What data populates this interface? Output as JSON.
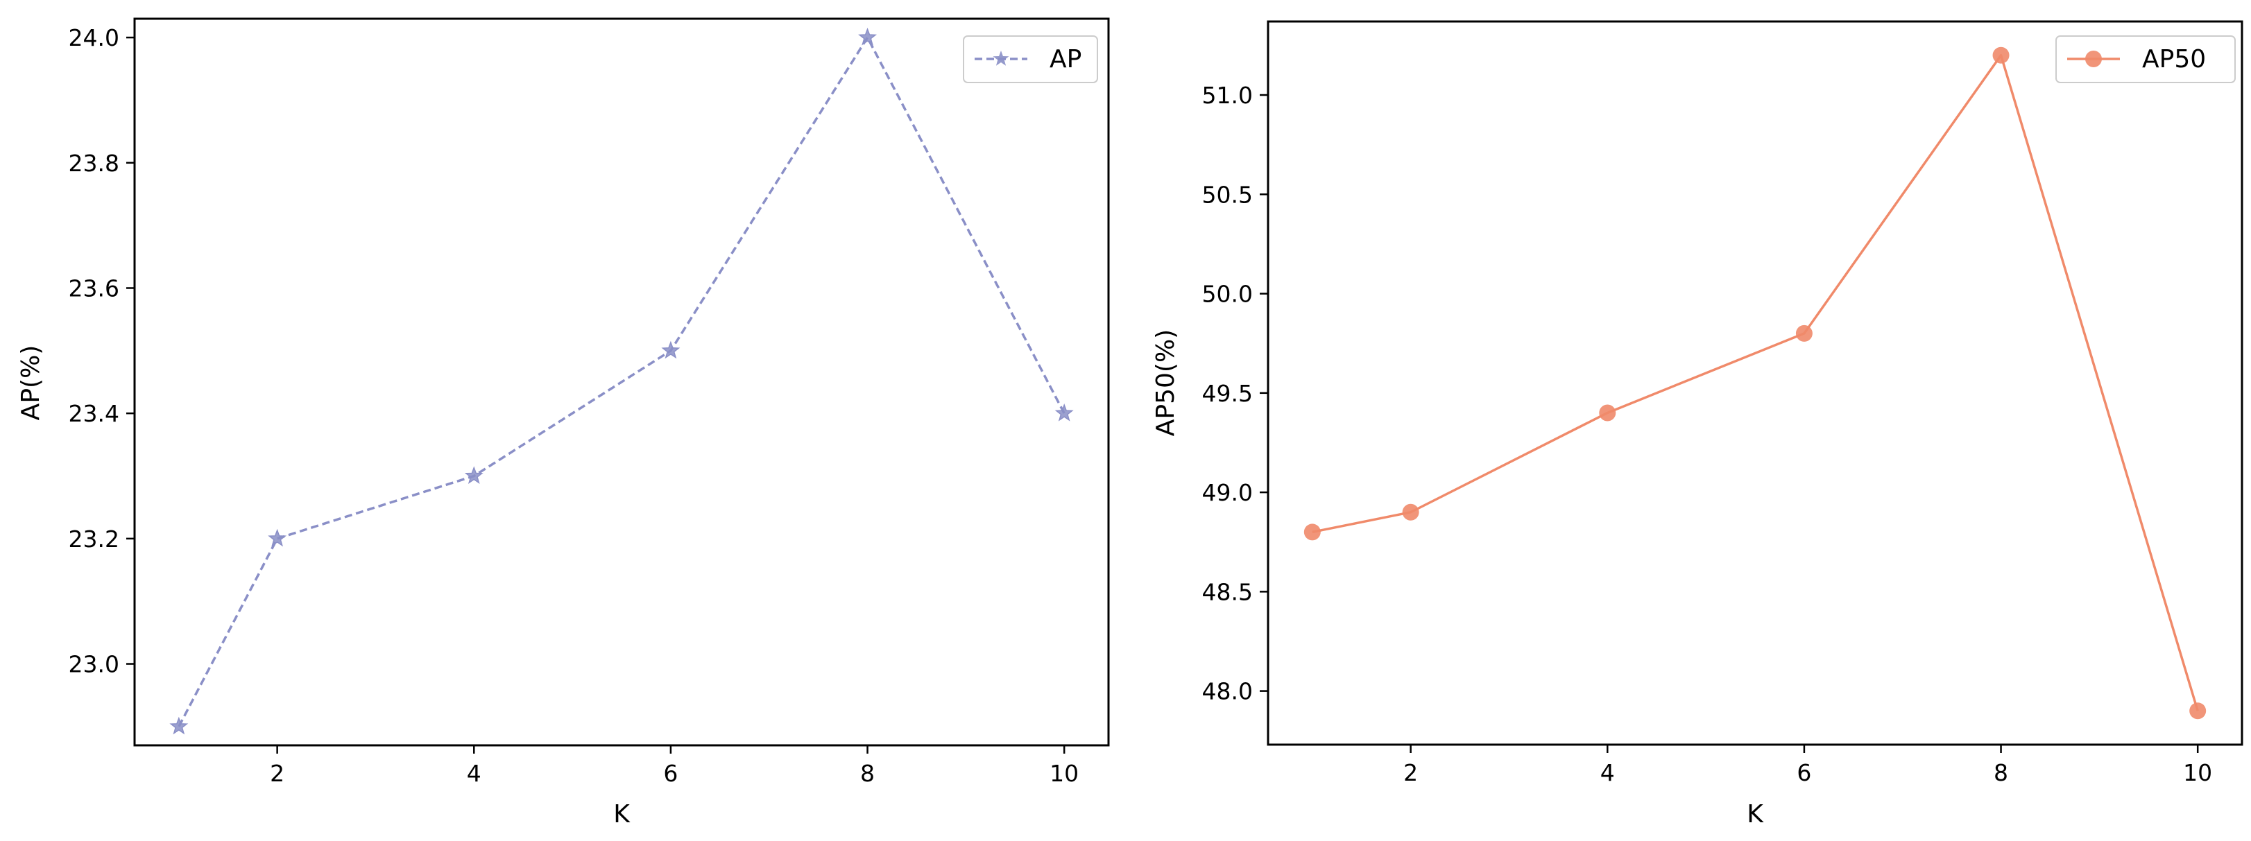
{
  "chart_data": [
    {
      "type": "line",
      "xlabel": "K",
      "ylabel": "AP(%)",
      "x": [
        1,
        2,
        4,
        6,
        8,
        10
      ],
      "xticks": [
        2,
        4,
        6,
        8,
        10
      ],
      "xlim": [
        0.55,
        10.45
      ],
      "ylim": [
        22.87,
        24.03
      ],
      "yticks": [
        23.0,
        23.2,
        23.4,
        23.6,
        23.8,
        24.0
      ],
      "ytick_decimals": 1,
      "grid": false,
      "legend_position": "top-right",
      "series": [
        {
          "name": "AP",
          "values": [
            22.9,
            23.2,
            23.3,
            23.5,
            24.0,
            23.4
          ],
          "color": "#8a8fc7",
          "line_style": "dashed",
          "marker": "star"
        }
      ]
    },
    {
      "type": "line",
      "xlabel": "K",
      "ylabel": "AP50(%)",
      "x": [
        1,
        2,
        4,
        6,
        8,
        10
      ],
      "xticks": [
        2,
        4,
        6,
        8,
        10
      ],
      "xlim": [
        0.55,
        10.45
      ],
      "ylim": [
        47.73,
        51.37
      ],
      "yticks": [
        48.0,
        48.5,
        49.0,
        49.5,
        50.0,
        50.5,
        51.0
      ],
      "ytick_decimals": 1,
      "grid": false,
      "legend_position": "top-right",
      "series": [
        {
          "name": "AP50",
          "values": [
            48.8,
            48.9,
            49.4,
            49.8,
            51.2,
            47.9
          ],
          "color": "#f08a6a",
          "line_style": "solid",
          "marker": "circle"
        }
      ]
    }
  ]
}
